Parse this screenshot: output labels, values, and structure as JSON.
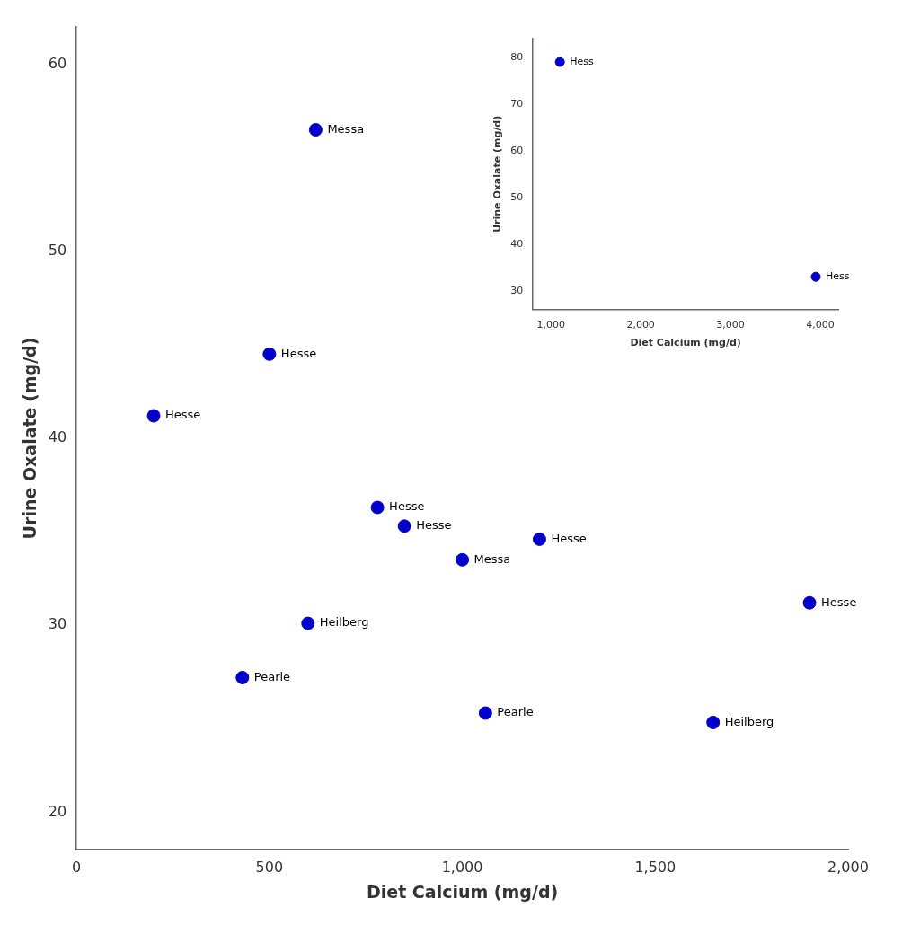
{
  "chart_data": [
    {
      "type": "scatter",
      "x": [
        620,
        500,
        200,
        780,
        850,
        1200,
        1000,
        1900,
        600,
        430,
        1060,
        1650
      ],
      "values": [
        56.5,
        44.5,
        41.2,
        36.3,
        35.3,
        34.6,
        33.5,
        31.2,
        30.1,
        27.2,
        25.3,
        24.8
      ],
      "labels": [
        "Messa",
        "Hesse",
        "Hesse",
        "Hesse",
        "Hesse",
        "Hesse",
        "Messa",
        "Hesse",
        "Heilberg",
        "Pearle",
        "Pearle",
        "Heilberg"
      ],
      "color": "#0000cc",
      "x_label": "Diet Calcium (mg/d)",
      "y_label": "Urine Oxalate (mg/d)",
      "xlim": [
        0,
        2000
      ],
      "ylim": [
        18,
        62
      ],
      "xticks": [
        0,
        500,
        {
          "value": 1000,
          "label": "1,000"
        },
        {
          "value": 1500,
          "label": "1,500"
        },
        {
          "value": 2000,
          "label": "2,000"
        }
      ],
      "yticks": [
        20,
        30,
        40,
        50,
        60
      ],
      "grid": false
    },
    {
      "type": "scatter",
      "x": [
        1100,
        3950
      ],
      "values": [
        79,
        33
      ],
      "labels": [
        "Hess",
        "Hess"
      ],
      "color": "#0000cc",
      "x_label": "Diet Calcium (mg/d)",
      "y_label": "Urine Oxalate (mg/d)",
      "xlim": [
        800,
        4200
      ],
      "ylim": [
        26,
        84
      ],
      "xticks": [
        {
          "value": 1000,
          "label": "1,000"
        },
        {
          "value": 2000,
          "label": "2,000"
        },
        {
          "value": 3000,
          "label": "3,000"
        },
        {
          "value": 4000,
          "label": "4,000"
        }
      ],
      "yticks": [
        30,
        40,
        50,
        60,
        70,
        80
      ],
      "grid": false
    }
  ]
}
